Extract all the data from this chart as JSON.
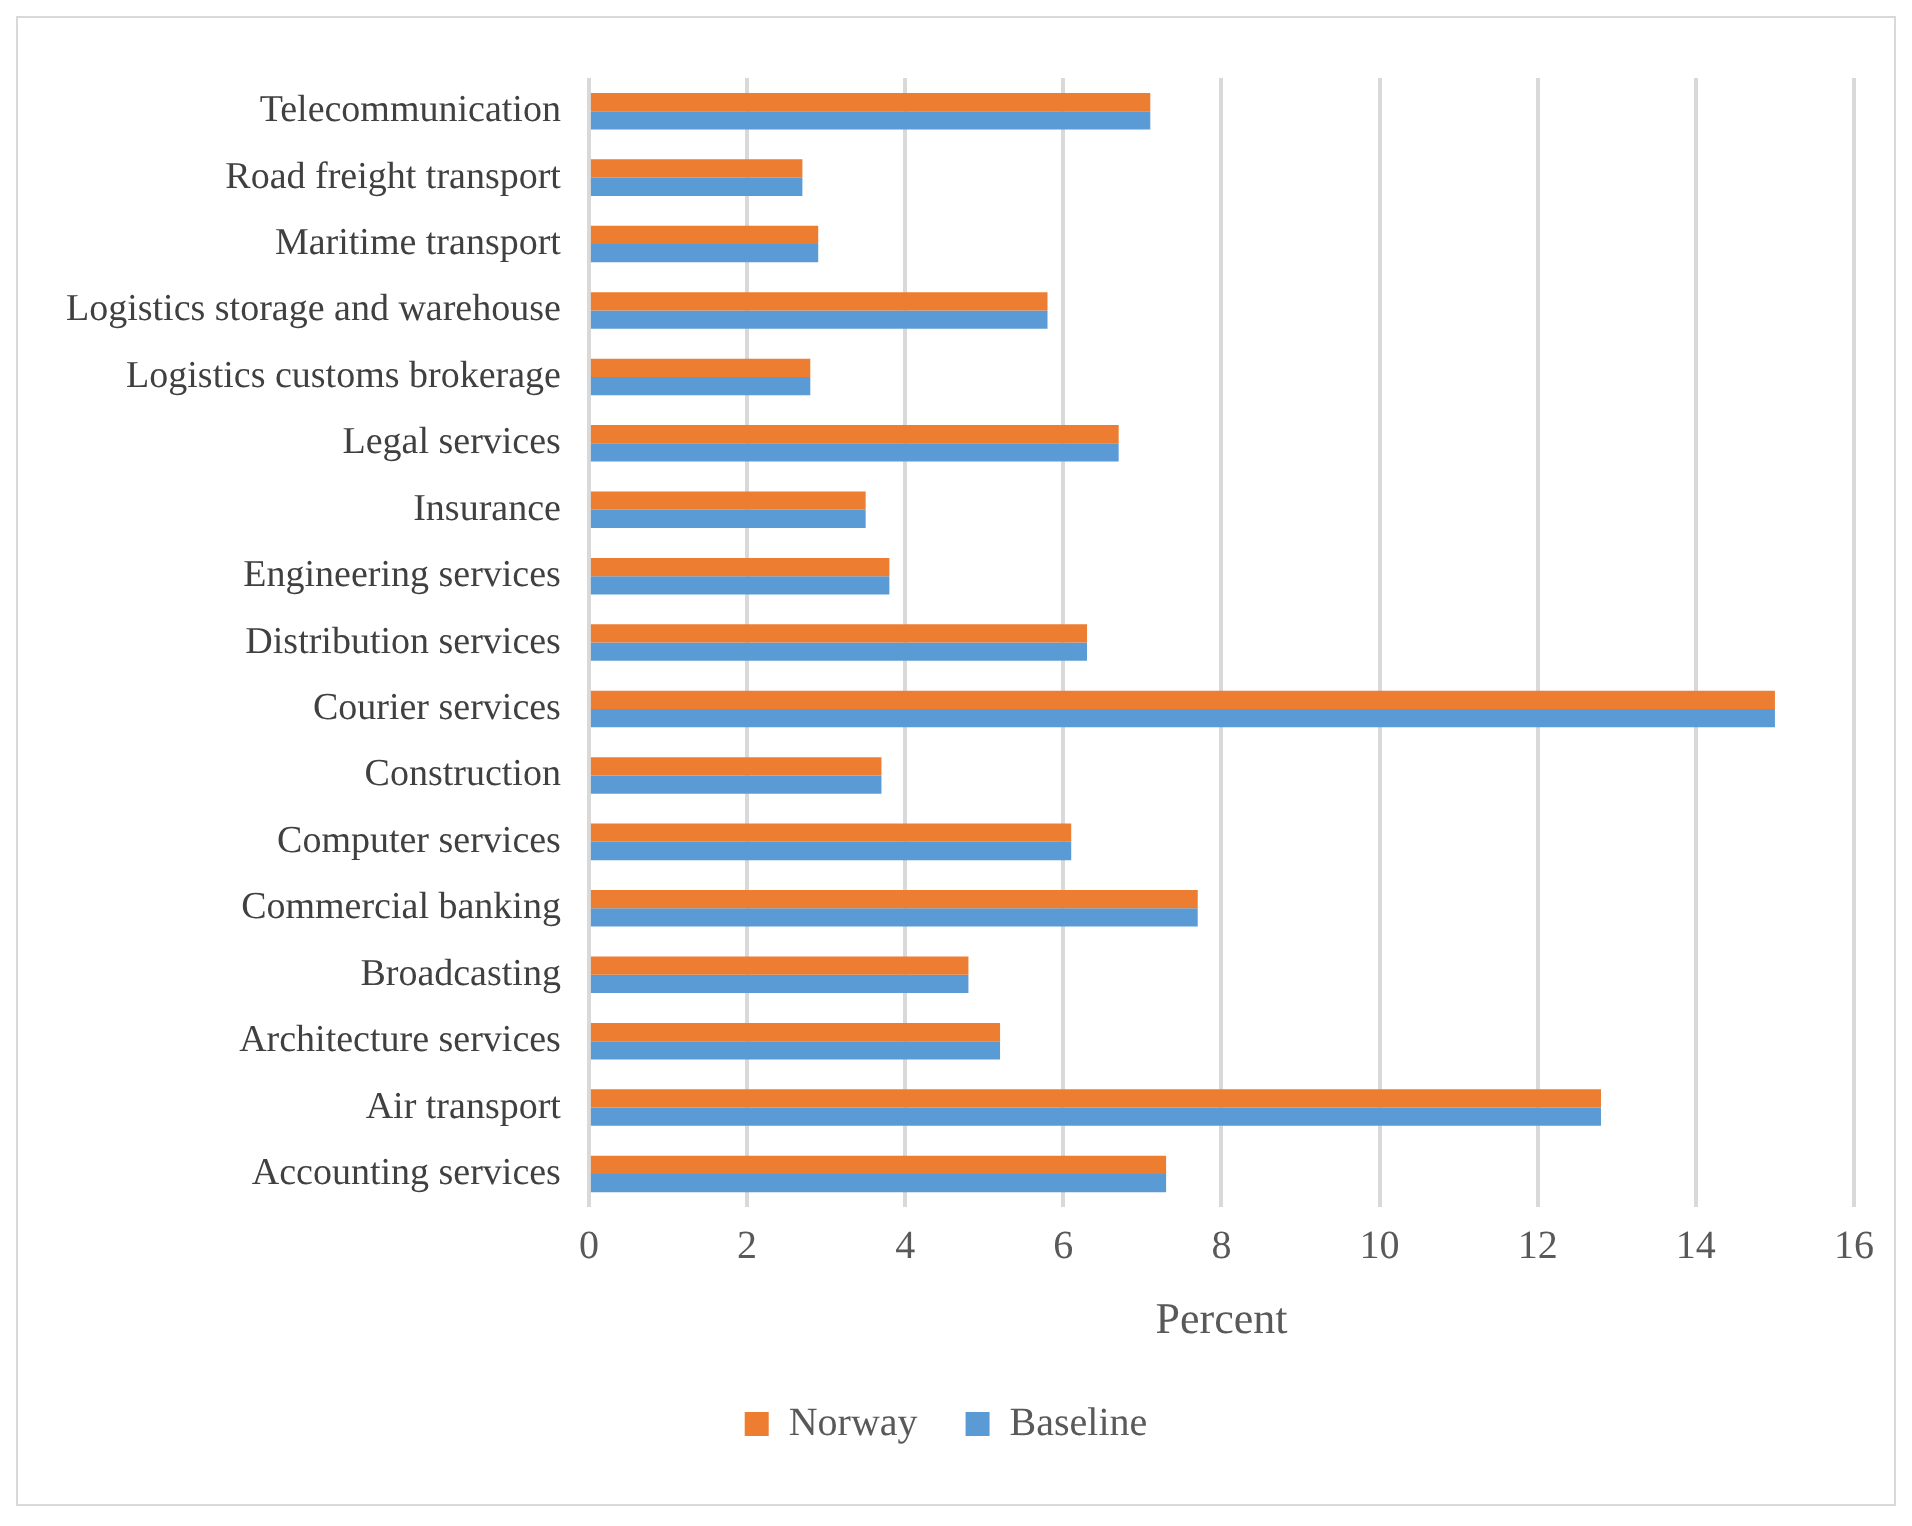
{
  "chart_data": {
    "type": "bar",
    "orientation": "horizontal",
    "xlabel": "Percent",
    "categories": [
      "Telecommunication",
      "Road freight transport",
      "Maritime transport",
      "Logistics storage and warehouse",
      "Logistics customs brokerage",
      "Legal services",
      "Insurance",
      "Engineering services",
      "Distribution services",
      "Courier services",
      "Construction",
      "Computer services",
      "Commercial banking",
      "Broadcasting",
      "Architecture services",
      "Air transport",
      "Accounting services"
    ],
    "series": [
      {
        "name": "Norway",
        "color": "#ed7d31",
        "values": [
          7.1,
          2.7,
          2.9,
          5.8,
          2.8,
          6.7,
          3.5,
          3.8,
          6.3,
          15.0,
          3.7,
          6.1,
          7.7,
          4.8,
          5.2,
          12.8,
          7.3
        ]
      },
      {
        "name": "Baseline",
        "color": "#5b9bd5",
        "values": [
          7.1,
          2.7,
          2.9,
          5.8,
          2.8,
          6.7,
          3.5,
          3.8,
          6.3,
          15.0,
          3.7,
          6.1,
          7.7,
          4.8,
          5.2,
          12.8,
          7.3
        ]
      }
    ],
    "xlim": [
      0,
      16
    ],
    "xticks": [
      0,
      2,
      4,
      6,
      8,
      10,
      12,
      14,
      16
    ],
    "grid": "x",
    "legend": "bottom"
  }
}
